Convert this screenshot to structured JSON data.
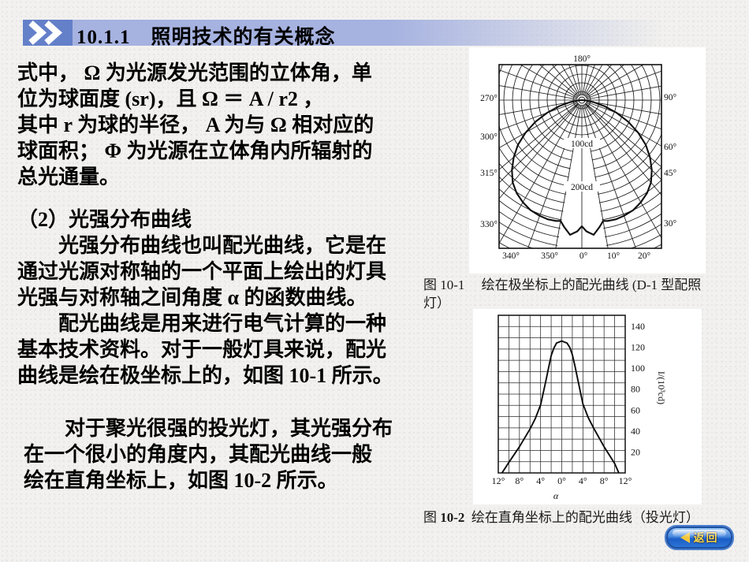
{
  "header": {
    "title": "10.1.1　照明技术的有关概念"
  },
  "body": {
    "paragraphs": [
      {
        "lines": [
          "式中， Ω 为光源发光范围的立体角，单",
          "位为球面度 (sr)，且 Ω ＝ A / r2 ，",
          "其中 r 为球的半径， A 为与 Ω 相对应的",
          "球面积； Φ 为光源在立体角内所辐射的",
          "总光通量。"
        ]
      },
      {
        "lines": [
          "（2）光强分布曲线",
          "　　光强分布曲线也叫配光曲线，它是在",
          "通过光源对称轴的一个平面上绘出的灯具",
          "光强与对称轴之间角度 α 的函数曲线。"
        ]
      },
      {
        "lines": [
          "　　配光曲线是用来进行电气计算的一种",
          "基本技术资料。对于一般灯具来说，配光",
          "曲线是绘在极坐标上的，如图 10-1 所示。"
        ]
      },
      {
        "lines": [
          "　　对于聚光很强的投光灯，其光强分布",
          "在一个很小的角度内，其配光曲线一般",
          "绘在直角坐标上，如图 10-2 所示。"
        ]
      }
    ]
  },
  "figures": {
    "fig1": {
      "caption_line1": "图 10-1　 绘在极坐标上的配光曲线 (D-1 型配照",
      "caption_line2": "灯）"
    },
    "fig2": {
      "caption_prefix": "图 ",
      "caption_num": "10-2",
      "caption_rest": "  绘在直角坐标上的配光曲线（投光灯）"
    }
  },
  "footer": {
    "back_label": "返回"
  },
  "colors": {
    "banner_box": "#6480c9",
    "banner_bar": "#a6b2e0",
    "button_face": "#2d74d6",
    "button_text": "#ffd944"
  },
  "chart_data": [
    {
      "type": "polar",
      "figure": "10-1",
      "description": "配光曲线（极坐标，D-1 型配照灯）",
      "unit": "cd",
      "ring_step_cd": 20,
      "ring_labels": [
        {
          "text": "100cd",
          "cd": 100
        },
        {
          "text": "200cd",
          "cd": 200
        }
      ],
      "angle_labels": {
        "top": "180°",
        "left": [
          "270°",
          "300°",
          "315°",
          "330°"
        ],
        "right": [
          "90°",
          "60°",
          "45°",
          "30°"
        ],
        "bottom": [
          "340°",
          "350°",
          "0°",
          "10°",
          "20°"
        ]
      },
      "curve_cd_by_angle": [
        [
          0,
          291
        ],
        [
          2,
          303
        ],
        [
          5,
          312
        ],
        [
          8,
          295
        ],
        [
          10,
          283
        ],
        [
          12,
          285
        ],
        [
          16,
          286
        ],
        [
          20,
          284
        ],
        [
          25,
          280
        ],
        [
          30,
          272
        ],
        [
          35,
          262
        ],
        [
          40,
          248
        ],
        [
          45,
          228
        ],
        [
          50,
          205
        ],
        [
          55,
          180
        ],
        [
          60,
          150
        ],
        [
          65,
          118
        ],
        [
          70,
          85
        ],
        [
          75,
          54
        ],
        [
          80,
          28
        ],
        [
          85,
          9
        ],
        [
          90,
          0
        ]
      ]
    },
    {
      "type": "line",
      "figure": "10-2",
      "description": "配光曲线（直角坐标，投光灯）",
      "xlabel": "α",
      "ylabel": "I/(10³cd)",
      "x_tick_labels": [
        "12°",
        "8°",
        "4°",
        "0°",
        "4°",
        "8°",
        "12°"
      ],
      "y_ticks": [
        20,
        40,
        60,
        80,
        100,
        120,
        140
      ],
      "x_range_deg": [
        -12,
        12
      ],
      "y_range": [
        0,
        150
      ],
      "points": [
        [
          -11.3,
          0
        ],
        [
          -10,
          10
        ],
        [
          -8,
          25
        ],
        [
          -6,
          42
        ],
        [
          -5,
          52
        ],
        [
          -4,
          65
        ],
        [
          -3,
          88
        ],
        [
          -2.5,
          100
        ],
        [
          -2,
          112
        ],
        [
          -1.5,
          119
        ],
        [
          -1,
          124
        ],
        [
          0,
          126
        ],
        [
          1,
          124
        ],
        [
          1.5,
          120
        ],
        [
          2,
          113
        ],
        [
          2.5,
          102
        ],
        [
          3,
          90
        ],
        [
          4,
          66
        ],
        [
          5,
          53
        ],
        [
          6,
          43
        ],
        [
          7,
          34
        ],
        [
          8,
          25
        ],
        [
          9,
          17
        ],
        [
          10,
          9
        ],
        [
          10.8,
          0
        ]
      ]
    }
  ]
}
